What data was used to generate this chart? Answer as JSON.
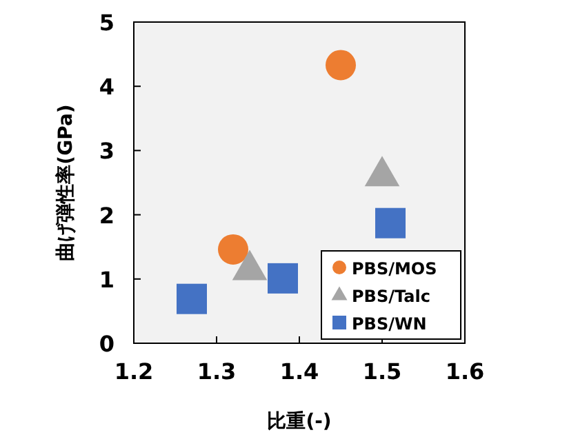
{
  "chart_data": {
    "type": "scatter",
    "xlabel": "比重(-)",
    "ylabel": "曲げ弾性率(GPa)",
    "xlim": [
      1.2,
      1.6
    ],
    "xticks": [
      1.2,
      1.3,
      1.4,
      1.5,
      1.6
    ],
    "ylim": [
      0,
      5
    ],
    "yticks": [
      0,
      1,
      2,
      3,
      4,
      5
    ],
    "grid": false,
    "legend": "bottom right",
    "series": [
      {
        "name": "PBS/MOS",
        "color": "#ed7d31",
        "marker": "circle",
        "x": [
          1.32,
          1.45
        ],
        "values": [
          1.46,
          4.33
        ]
      },
      {
        "name": "PBS/Talc",
        "color": "#a5a5a5",
        "marker": "triangle",
        "x": [
          1.34,
          1.5
        ],
        "values": [
          1.16,
          2.62
        ]
      },
      {
        "name": "PBS/WN",
        "color": "#4472c4",
        "marker": "square",
        "x": [
          1.27,
          1.38,
          1.51
        ],
        "values": [
          0.69,
          1.01,
          1.87
        ]
      }
    ]
  }
}
